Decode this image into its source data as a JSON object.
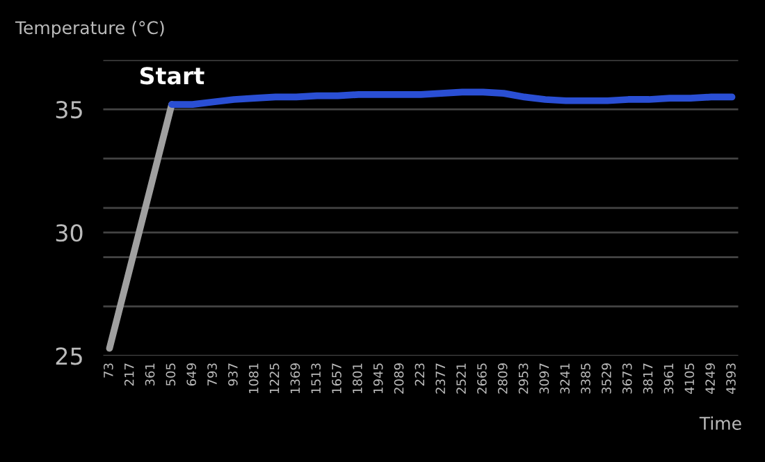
{
  "chart_data": {
    "type": "line",
    "xlabel": "Time",
    "ylabel": "Temperature (°C)",
    "categories": [
      "73",
      "217",
      "361",
      "505",
      "649",
      "793",
      "937",
      "1081",
      "1225",
      "1369",
      "1513",
      "1657",
      "1801",
      "1945",
      "2089",
      "223",
      "2377",
      "2521",
      "2665",
      "2809",
      "2953",
      "3097",
      "3241",
      "3385",
      "3529",
      "3673",
      "3817",
      "3961",
      "4105",
      "4249",
      "4393"
    ],
    "series": [
      {
        "color": "#a0a0a0",
        "values": [
          25.3,
          28.6,
          31.9,
          35.2,
          null,
          null,
          null,
          null,
          null,
          null,
          null,
          null,
          null,
          null,
          null,
          null,
          null,
          null,
          null,
          null,
          null,
          null,
          null,
          null,
          null,
          null,
          null,
          null,
          null,
          null,
          null
        ]
      },
      {
        "color": "#2a4fd4",
        "values": [
          null,
          null,
          null,
          35.2,
          35.2,
          35.3,
          35.4,
          35.45,
          35.5,
          35.5,
          35.55,
          35.55,
          35.6,
          35.6,
          35.6,
          35.6,
          35.65,
          35.7,
          35.7,
          35.65,
          35.5,
          35.4,
          35.35,
          35.35,
          35.35,
          35.4,
          35.4,
          35.45,
          35.45,
          35.5,
          35.5
        ]
      }
    ],
    "annotations": [
      {
        "text": "Start",
        "x": "505",
        "y": 35.2
      }
    ],
    "ylim": [
      25,
      37
    ],
    "yticks": [
      25,
      {
        "value": 27,
        "label": null
      },
      {
        "value": 29,
        "label": null
      },
      30,
      {
        "value": 31,
        "label": null
      },
      {
        "value": 33,
        "label": null
      },
      35,
      {
        "value": 37,
        "label": null
      }
    ],
    "grid": "y",
    "marker": "none",
    "line_style": "solid",
    "legend": false
  }
}
